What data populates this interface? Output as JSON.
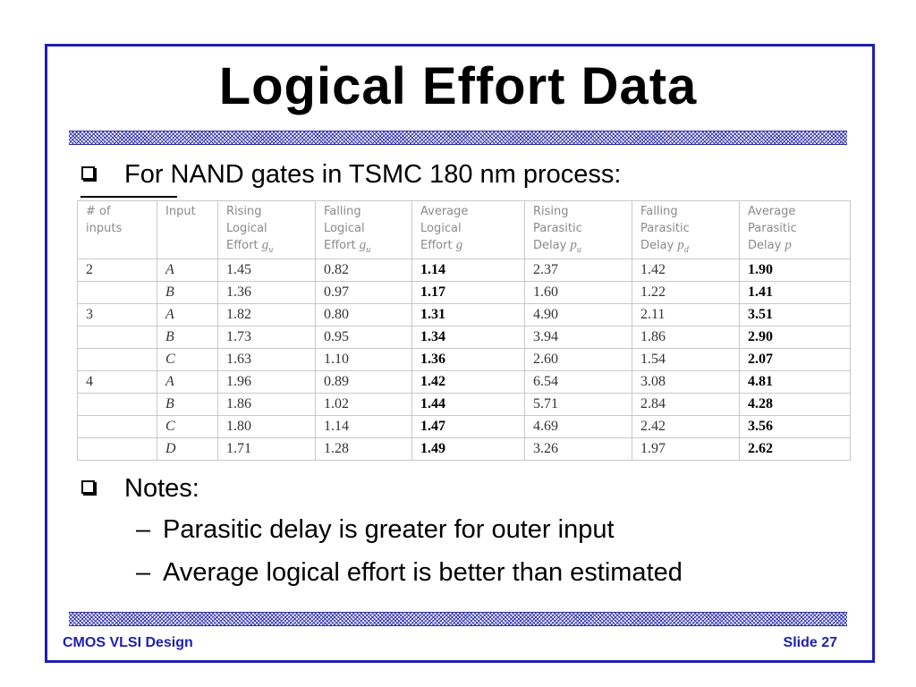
{
  "slide": {
    "title": "Logical Effort Data",
    "bullet1": "For NAND gates in TSMC 180 nm process:",
    "bullet2": "Notes:",
    "sub1": "Parasitic delay is greater for outer input",
    "sub2": "Average logical effort is better than estimated",
    "dash": "–",
    "footer_left": "CMOS VLSI Design",
    "footer_right": "Slide 27"
  },
  "table": {
    "headers": [
      {
        "lines": [
          "# of",
          "inputs"
        ]
      },
      {
        "lines": [
          "Input"
        ]
      },
      {
        "lines": [
          "Rising",
          "Logical",
          "Effort"
        ],
        "var": "g",
        "sub": "u"
      },
      {
        "lines": [
          "Falling",
          "Logical",
          "Effort"
        ],
        "var": "g",
        "sub": "u"
      },
      {
        "lines": [
          "Average",
          "Logical",
          "Effort"
        ],
        "var": "g",
        "sub": ""
      },
      {
        "lines": [
          "Rising",
          "Parasitic",
          "Delay"
        ],
        "var": "p",
        "sub": "u"
      },
      {
        "lines": [
          "Falling",
          "Parasitic",
          "Delay"
        ],
        "var": "p",
        "sub": "d"
      },
      {
        "lines": [
          "Average",
          "Parasitic",
          "Delay"
        ],
        "var": "p",
        "sub": ""
      }
    ],
    "rows": [
      [
        "2",
        "A",
        "1.45",
        "0.82",
        "1.14",
        "2.37",
        "1.42",
        "1.90"
      ],
      [
        "",
        "B",
        "1.36",
        "0.97",
        "1.17",
        "1.60",
        "1.22",
        "1.41"
      ],
      [
        "3",
        "A",
        "1.82",
        "0.80",
        "1.31",
        "4.90",
        "2.11",
        "3.51"
      ],
      [
        "",
        "B",
        "1.73",
        "0.95",
        "1.34",
        "3.94",
        "1.86",
        "2.90"
      ],
      [
        "",
        "C",
        "1.63",
        "1.10",
        "1.36",
        "2.60",
        "1.54",
        "2.07"
      ],
      [
        "4",
        "A",
        "1.96",
        "0.89",
        "1.42",
        "6.54",
        "3.08",
        "4.81"
      ],
      [
        "",
        "B",
        "1.86",
        "1.02",
        "1.44",
        "5.71",
        "2.84",
        "4.28"
      ],
      [
        "",
        "C",
        "1.80",
        "1.14",
        "1.47",
        "4.69",
        "2.42",
        "3.56"
      ],
      [
        "",
        "D",
        "1.71",
        "1.28",
        "1.49",
        "3.26",
        "1.97",
        "2.62"
      ]
    ]
  },
  "colors": {
    "frame": "#1f1fb0",
    "footer_text": "#1f1fb0"
  }
}
